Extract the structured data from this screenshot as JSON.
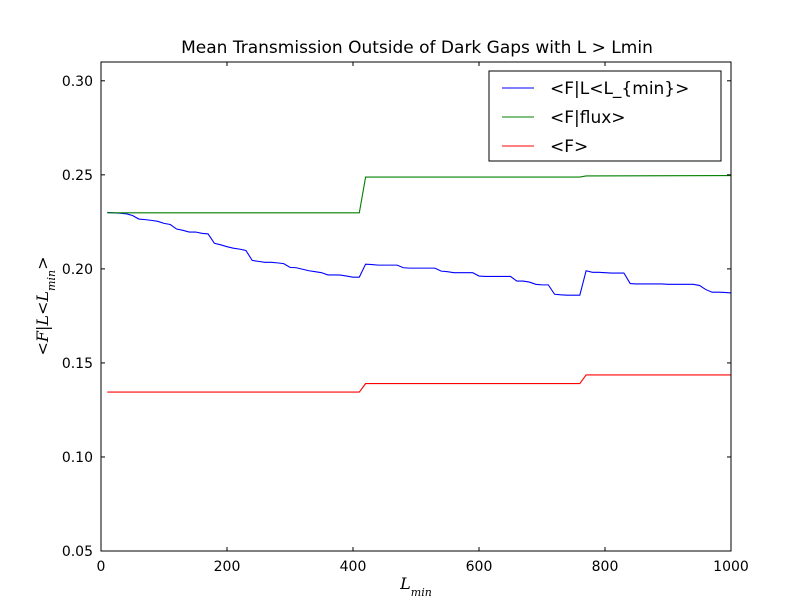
{
  "chart_data": {
    "type": "line",
    "title": "Mean Transmission Outside of Dark Gaps with L > Lmin",
    "xlabel": "L_min",
    "ylabel": "<F|L<L_min>",
    "xlim": [
      0,
      1000
    ],
    "ylim": [
      0.05,
      0.31
    ],
    "x_ticks": [
      0,
      200,
      400,
      600,
      800,
      1000
    ],
    "x_tick_labels": [
      "0",
      "200",
      "400",
      "600",
      "800",
      "1000"
    ],
    "y_ticks": [
      0.05,
      0.1,
      0.15,
      0.2,
      0.25,
      0.3
    ],
    "y_tick_labels": [
      "0.05",
      "0.10",
      "0.15",
      "0.20",
      "0.25",
      "0.30"
    ],
    "grid": false,
    "legend_position": "top-right",
    "series": [
      {
        "name": "<F|L<L_{min}>",
        "color": "#0000ff",
        "points": [
          [
            10,
            0.23
          ],
          [
            20,
            0.2298
          ],
          [
            30,
            0.2296
          ],
          [
            40,
            0.2293
          ],
          [
            50,
            0.2284
          ],
          [
            60,
            0.2265
          ],
          [
            70,
            0.2262
          ],
          [
            80,
            0.2258
          ],
          [
            90,
            0.2253
          ],
          [
            100,
            0.2242
          ],
          [
            110,
            0.2236
          ],
          [
            120,
            0.2212
          ],
          [
            130,
            0.2205
          ],
          [
            140,
            0.2196
          ],
          [
            150,
            0.2196
          ],
          [
            160,
            0.2189
          ],
          [
            170,
            0.2186
          ],
          [
            180,
            0.2136
          ],
          [
            190,
            0.2128
          ],
          [
            200,
            0.2118
          ],
          [
            210,
            0.211
          ],
          [
            220,
            0.2105
          ],
          [
            230,
            0.2098
          ],
          [
            240,
            0.2045
          ],
          [
            250,
            0.204
          ],
          [
            260,
            0.2035
          ],
          [
            270,
            0.2035
          ],
          [
            280,
            0.2032
          ],
          [
            290,
            0.2028
          ],
          [
            300,
            0.2008
          ],
          [
            310,
            0.2006
          ],
          [
            320,
            0.1998
          ],
          [
            330,
            0.199
          ],
          [
            340,
            0.1985
          ],
          [
            350,
            0.198
          ],
          [
            360,
            0.1968
          ],
          [
            370,
            0.1968
          ],
          [
            380,
            0.1967
          ],
          [
            390,
            0.1962
          ],
          [
            400,
            0.1956
          ],
          [
            410,
            0.1956
          ],
          [
            420,
            0.2025
          ],
          [
            430,
            0.2023
          ],
          [
            440,
            0.202
          ],
          [
            450,
            0.202
          ],
          [
            460,
            0.202
          ],
          [
            470,
            0.202
          ],
          [
            480,
            0.2006
          ],
          [
            490,
            0.2004
          ],
          [
            500,
            0.2004
          ],
          [
            510,
            0.2004
          ],
          [
            520,
            0.2004
          ],
          [
            530,
            0.2004
          ],
          [
            540,
            0.1988
          ],
          [
            550,
            0.1985
          ],
          [
            560,
            0.198
          ],
          [
            570,
            0.198
          ],
          [
            580,
            0.198
          ],
          [
            590,
            0.198
          ],
          [
            600,
            0.1962
          ],
          [
            610,
            0.196
          ],
          [
            620,
            0.196
          ],
          [
            630,
            0.196
          ],
          [
            640,
            0.196
          ],
          [
            650,
            0.196
          ],
          [
            660,
            0.1935
          ],
          [
            670,
            0.1935
          ],
          [
            680,
            0.193
          ],
          [
            690,
            0.1918
          ],
          [
            700,
            0.1915
          ],
          [
            710,
            0.1915
          ],
          [
            720,
            0.1865
          ],
          [
            730,
            0.1862
          ],
          [
            740,
            0.186
          ],
          [
            750,
            0.186
          ],
          [
            760,
            0.186
          ],
          [
            770,
            0.199
          ],
          [
            780,
            0.1982
          ],
          [
            790,
            0.1982
          ],
          [
            800,
            0.198
          ],
          [
            810,
            0.1978
          ],
          [
            820,
            0.1978
          ],
          [
            830,
            0.1978
          ],
          [
            840,
            0.1922
          ],
          [
            850,
            0.192
          ],
          [
            860,
            0.192
          ],
          [
            870,
            0.192
          ],
          [
            880,
            0.192
          ],
          [
            890,
            0.192
          ],
          [
            900,
            0.1918
          ],
          [
            910,
            0.1918
          ],
          [
            920,
            0.1918
          ],
          [
            930,
            0.1918
          ],
          [
            940,
            0.1918
          ],
          [
            950,
            0.1912
          ],
          [
            960,
            0.189
          ],
          [
            970,
            0.1876
          ],
          [
            980,
            0.1876
          ],
          [
            990,
            0.1875
          ],
          [
            1000,
            0.1872
          ]
        ]
      },
      {
        "name": "<F|flux>",
        "color": "#008000",
        "points": [
          [
            10,
            0.2298
          ],
          [
            410,
            0.2298
          ],
          [
            420,
            0.2488
          ],
          [
            760,
            0.2488
          ],
          [
            770,
            0.2494
          ],
          [
            1000,
            0.2496
          ]
        ]
      },
      {
        "name": "<F>",
        "color": "#ff0000",
        "points": [
          [
            10,
            0.1345
          ],
          [
            410,
            0.1345
          ],
          [
            420,
            0.139
          ],
          [
            760,
            0.139
          ],
          [
            770,
            0.1436
          ],
          [
            1000,
            0.1436
          ]
        ]
      }
    ]
  }
}
